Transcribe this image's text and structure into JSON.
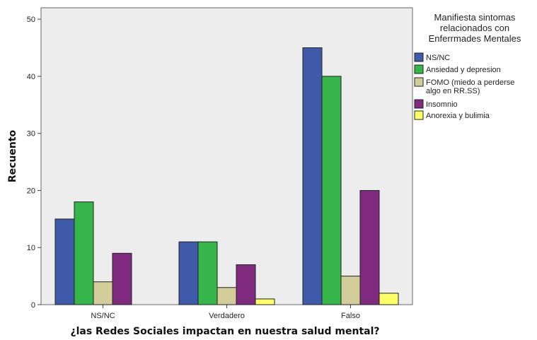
{
  "chart_data": {
    "type": "bar",
    "xlabel": "¿las Redes Sociales impactan en nuestra salud mental?",
    "ylabel": "Recuento",
    "categories": [
      "NS/NC",
      "Verdadero",
      "Falso"
    ],
    "ylim": [
      0,
      52
    ],
    "yticks": [
      0,
      10,
      20,
      30,
      40,
      50
    ],
    "grid": false,
    "legend": {
      "title": [
        "Manifiesta sintomas",
        "relacionados con",
        "Enferrmades Mentales"
      ],
      "position": "top-right"
    },
    "series": [
      {
        "name": [
          "NS/NC"
        ],
        "color": "#3f5aa8",
        "values": [
          15,
          11,
          45
        ]
      },
      {
        "name": [
          "Ansiedad y depresion"
        ],
        "color": "#36b54a",
        "values": [
          18,
          11,
          40
        ]
      },
      {
        "name": [
          "FOMO (miedo a perderse",
          "algo en RR.SS)"
        ],
        "color": "#d3cd9a",
        "values": [
          4,
          3,
          5
        ]
      },
      {
        "name": [
          "Insomnio"
        ],
        "color": "#7f2a7e",
        "values": [
          9,
          7,
          20
        ]
      },
      {
        "name": [
          "Anorexia y bulimia"
        ],
        "color": "#ffff66",
        "values": [
          0,
          1,
          2
        ]
      }
    ]
  }
}
